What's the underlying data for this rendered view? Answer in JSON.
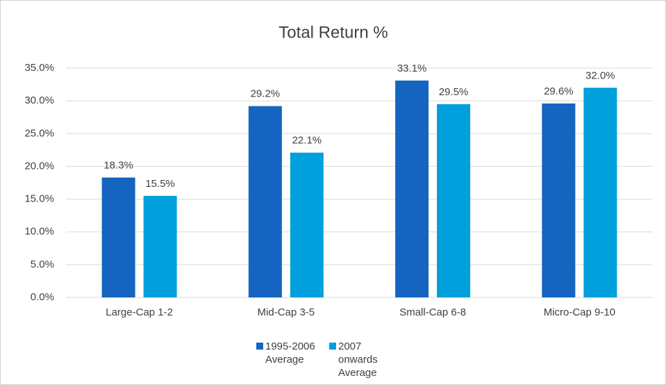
{
  "chart_data": {
    "type": "bar",
    "title": "Total Return %",
    "categories": [
      "Large-Cap 1-2",
      "Mid-Cap 3-5",
      "Small-Cap 6-8",
      "Micro-Cap 9-10"
    ],
    "series": [
      {
        "name": "1995-2006 Average",
        "color": "#1565c0",
        "values": [
          18.3,
          29.2,
          33.1,
          29.6
        ],
        "value_labels": [
          "18.3%",
          "29.2%",
          "33.1%",
          "29.6%"
        ]
      },
      {
        "name": "2007 onwards Average",
        "color": "#00a0dc",
        "values": [
          15.5,
          22.1,
          29.5,
          32.0
        ],
        "value_labels": [
          "15.5%",
          "22.1%",
          "29.5%",
          "32.0%"
        ]
      }
    ],
    "ylim": [
      0,
      35
    ],
    "yticks": [
      {
        "value": 0,
        "label": "0.0%"
      },
      {
        "value": 5,
        "label": "5.0%"
      },
      {
        "value": 10,
        "label": "10.0%"
      },
      {
        "value": 15,
        "label": "15.0%"
      },
      {
        "value": 20,
        "label": "20.0%"
      },
      {
        "value": 25,
        "label": "25.0%"
      },
      {
        "value": 30,
        "label": "30.0%"
      },
      {
        "value": 35,
        "label": "35.0%"
      }
    ],
    "grid": true,
    "legend": "bottom"
  }
}
